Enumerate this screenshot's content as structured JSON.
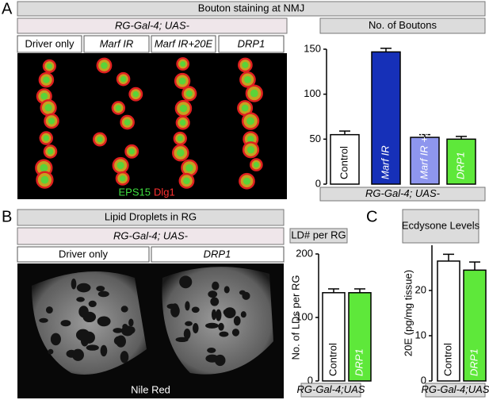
{
  "panel_labels": [
    "A",
    "B",
    "C"
  ],
  "panel_a": {
    "title": "Bouton staining at NMJ",
    "genotype": "RG-Gal-4; UAS-",
    "columns": [
      "Driver only",
      "Marf IR",
      "Marf IR+20E",
      "DRP1"
    ],
    "stain_1": "EPS15",
    "stain_2": "Dlg1"
  },
  "panel_b": {
    "title": "Lipid Droplets in RG",
    "genotype": "RG-Gal-4; UAS-",
    "columns": [
      "Driver only",
      "DRP1"
    ],
    "stain": "Nile Red"
  },
  "chart_data": [
    {
      "type": "bar",
      "title": "No. of Boutons",
      "categories": [
        "Control",
        "Marf IR",
        "Marf IR +20E",
        "DRP1"
      ],
      "values": [
        55,
        147,
        52,
        50
      ],
      "errors": [
        4,
        4,
        3,
        3
      ],
      "colors": [
        "#ffffff",
        "#1630b8",
        "#8e96ee",
        "#5ee83a"
      ],
      "ylim": [
        0,
        150
      ],
      "yticks": [
        0,
        50,
        100,
        150
      ],
      "xlabel": "RG-Gal-4; UAS-"
    },
    {
      "type": "bar",
      "title": "LD# per RG",
      "ylabel": "No. of LDs per RG",
      "categories": [
        "Control",
        "DRP1"
      ],
      "values": [
        139,
        139
      ],
      "errors": [
        6,
        6
      ],
      "colors": [
        "#ffffff",
        "#5ee83a"
      ],
      "ylim": [
        0,
        200
      ],
      "yticks": [
        0,
        100,
        200
      ],
      "xlabel": "RG-Gal-4;UAS"
    },
    {
      "type": "bar",
      "title": "Ecdysone Levels",
      "ylabel": "20E (pg/mg tissue)",
      "categories": [
        "Control",
        "DRP1"
      ],
      "values": [
        26.5,
        24.5
      ],
      "errors": [
        1.5,
        1.8
      ],
      "colors": [
        "#ffffff",
        "#5ee83a"
      ],
      "ylim": [
        0,
        30
      ],
      "yticks": [
        0,
        10,
        20
      ],
      "xlabel": "RG-Gal-4;UAS"
    }
  ]
}
